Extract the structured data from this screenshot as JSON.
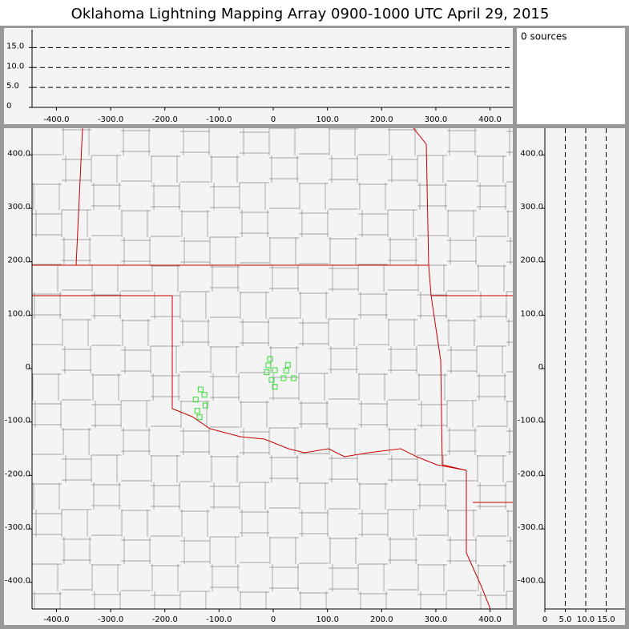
{
  "title": "Oklahoma Lightning Mapping Array   0900-1000 UTC  April 29, 2015",
  "sources_label": "0 sources",
  "chart_data": [
    {
      "type": "axes",
      "xlim": [
        -445,
        442
      ],
      "ylim": [
        0,
        19.5
      ],
      "xticks": [
        {
          "value": -400,
          "label": "-400.0"
        },
        {
          "value": -300,
          "label": "-300.0"
        },
        {
          "value": -200,
          "label": "-200.0"
        },
        {
          "value": -100,
          "label": "-100.0"
        },
        0,
        {
          "value": 100,
          "label": "100.0"
        },
        {
          "value": 200,
          "label": "200.0"
        },
        {
          "value": 300,
          "label": "300.0"
        },
        {
          "value": 400,
          "label": "400.0"
        }
      ],
      "yticks": [
        0,
        {
          "value": 5,
          "label": "5.0"
        },
        {
          "value": 10,
          "label": "10.0"
        },
        {
          "value": 15,
          "label": "15.0"
        }
      ],
      "grid": "y"
    },
    {
      "type": "scatter",
      "color": "#33dd33",
      "x": [
        -6,
        -9,
        3,
        -12,
        27,
        24,
        38,
        19,
        -3,
        3,
        -134,
        -127,
        -143,
        -125,
        -140,
        -136
      ],
      "y": [
        18,
        6,
        -3,
        -7,
        7,
        -4,
        -18,
        -18,
        -21,
        -34,
        -39,
        -49,
        -58,
        -69,
        -79,
        -91
      ],
      "xlim": [
        -445,
        442
      ],
      "ylim": [
        -450,
        450
      ],
      "xticks": [
        {
          "value": -400,
          "label": "-400.0"
        },
        {
          "value": -300,
          "label": "-300.0"
        },
        {
          "value": -200,
          "label": "-200.0"
        },
        {
          "value": -100,
          "label": "-100.0"
        },
        0,
        {
          "value": 100,
          "label": "100.0"
        },
        {
          "value": 200,
          "label": "200.0"
        },
        {
          "value": 300,
          "label": "300.0"
        },
        {
          "value": 400,
          "label": "400.0"
        }
      ],
      "yticks": [
        {
          "value": -400,
          "label": "-400.0"
        },
        {
          "value": -300,
          "label": "-300.0"
        },
        {
          "value": -200,
          "label": "-200.0"
        },
        {
          "value": -100,
          "label": "-100.0"
        },
        0,
        {
          "value": 100,
          "label": "100.0"
        },
        {
          "value": 200,
          "label": "200.0"
        },
        {
          "value": 300,
          "label": "300.0"
        },
        {
          "value": 400,
          "label": "400.0"
        }
      ]
    },
    {
      "type": "axes",
      "xlim": [
        0,
        19.6
      ],
      "ylim": [
        -450,
        450
      ],
      "xticks": [
        0,
        {
          "value": 5,
          "label": "5.0"
        },
        {
          "value": 10,
          "label": "10.0"
        },
        {
          "value": 15,
          "label": "15.0"
        }
      ],
      "yticks": [
        {
          "value": -400,
          "label": "-400.0"
        },
        {
          "value": -300,
          "label": "-300.0"
        },
        {
          "value": -200,
          "label": "-200.0"
        },
        {
          "value": -100,
          "label": "-100.0"
        },
        0,
        {
          "value": 100,
          "label": "100.0"
        },
        {
          "value": 200,
          "label": "200.0"
        },
        {
          "value": 300,
          "label": "300.0"
        },
        {
          "value": 400,
          "label": "400.0"
        }
      ],
      "grid": "x"
    }
  ]
}
